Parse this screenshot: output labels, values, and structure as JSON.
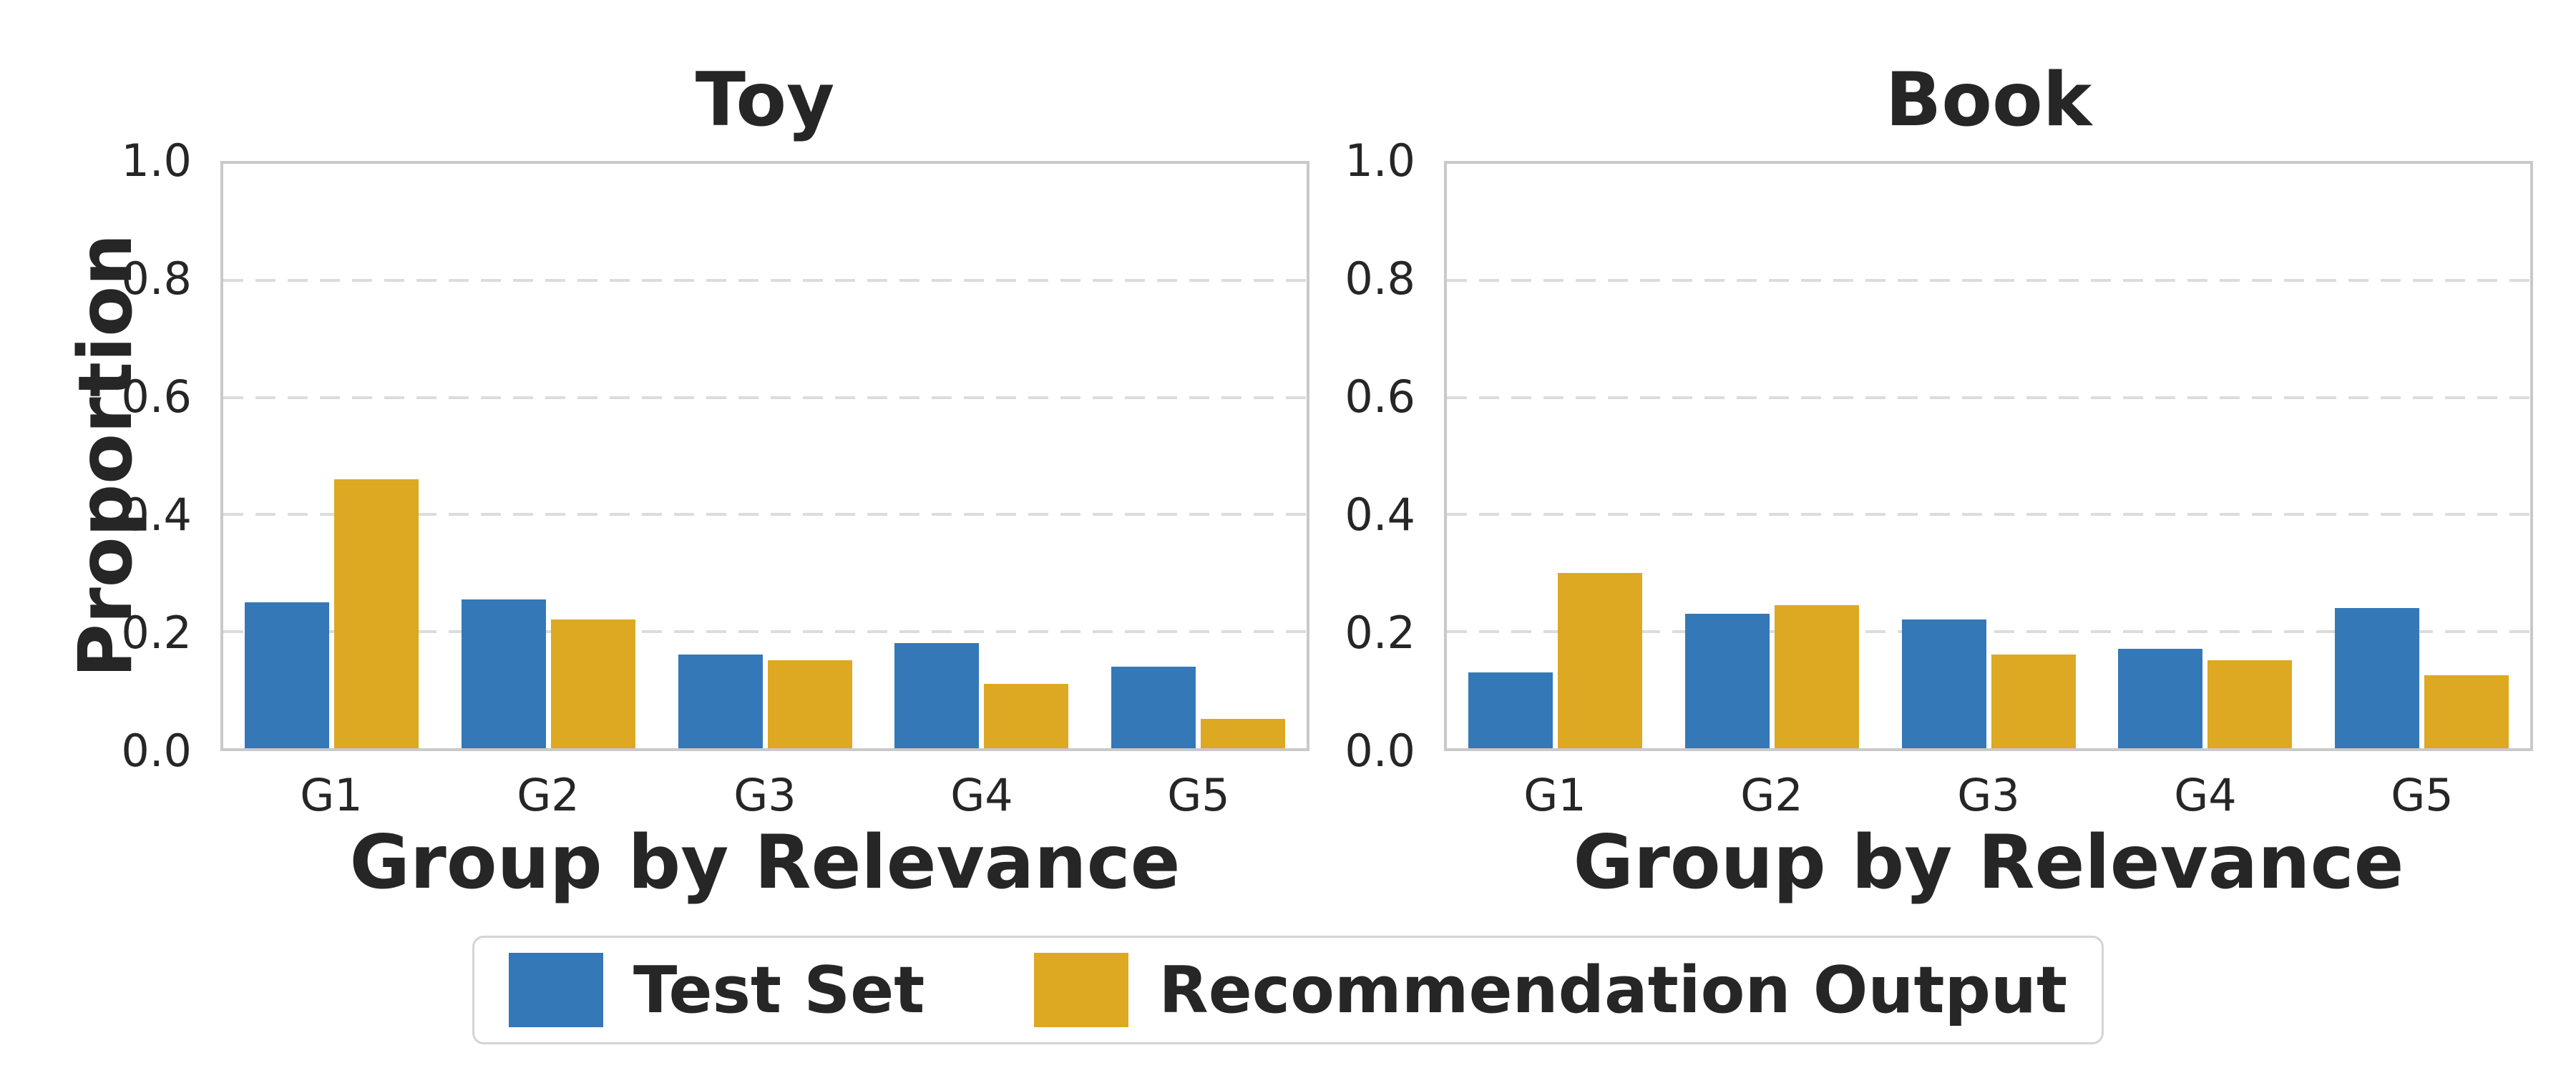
{
  "figure": {
    "ylabel": "Proportion",
    "background": "#ffffff"
  },
  "colors": {
    "test_set": "#3478B8",
    "recommendation_output": "#DDA822",
    "grid": "#DCDCDC",
    "spine": "#C9C9C9",
    "text": "#262626"
  },
  "legend": {
    "items": [
      {
        "label": "Test Set",
        "color": "#3478B8"
      },
      {
        "label": "Recommendation Output",
        "color": "#DDA822"
      }
    ]
  },
  "chart_data": [
    {
      "type": "bar",
      "title": "Toy",
      "xlabel": "Group by Relevance",
      "ylabel": "Proportion",
      "categories": [
        "G1",
        "G2",
        "G3",
        "G4",
        "G5"
      ],
      "series": [
        {
          "name": "Test Set",
          "values": [
            0.25,
            0.255,
            0.16,
            0.18,
            0.14
          ]
        },
        {
          "name": "Recommendation Output",
          "values": [
            0.46,
            0.22,
            0.15,
            0.11,
            0.05
          ]
        }
      ],
      "ylim": [
        0.0,
        1.0
      ],
      "yticks": [
        0.0,
        0.2,
        0.4,
        0.6,
        0.8,
        1.0
      ],
      "ytick_labels": [
        "0.0",
        "0.2",
        "0.4",
        "0.6",
        "0.8",
        "1.0"
      ],
      "grid": "horizontal-dashed",
      "legend_position": "below-figure"
    },
    {
      "type": "bar",
      "title": "Book",
      "xlabel": "Group by Relevance",
      "ylabel": "Proportion",
      "categories": [
        "G1",
        "G2",
        "G3",
        "G4",
        "G5"
      ],
      "series": [
        {
          "name": "Test Set",
          "values": [
            0.13,
            0.23,
            0.22,
            0.17,
            0.24
          ]
        },
        {
          "name": "Recommendation Output",
          "values": [
            0.3,
            0.245,
            0.16,
            0.15,
            0.125
          ]
        }
      ],
      "ylim": [
        0.0,
        1.0
      ],
      "yticks": [
        0.0,
        0.2,
        0.4,
        0.6,
        0.8,
        1.0
      ],
      "ytick_labels": [
        "0.0",
        "0.2",
        "0.4",
        "0.6",
        "0.8",
        "1.0"
      ],
      "grid": "horizontal-dashed",
      "legend_position": "below-figure"
    }
  ]
}
